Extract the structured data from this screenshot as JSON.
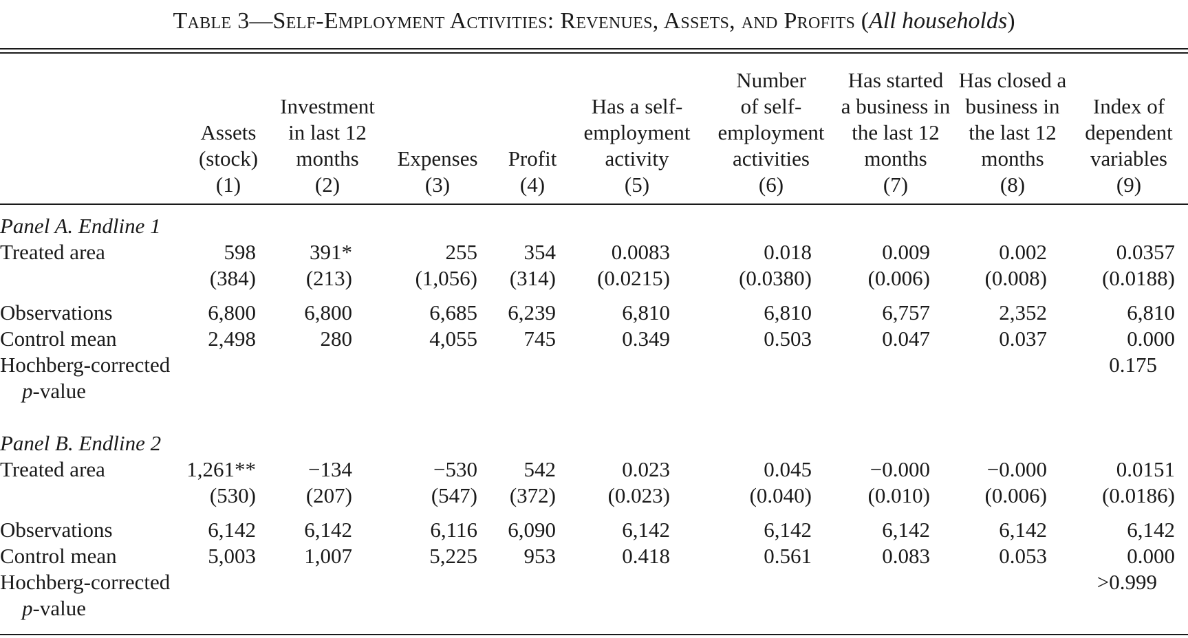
{
  "title": {
    "prefix": "Table 3",
    "dash": "—",
    "main": "Self-Employment Activities: Revenues, Assets, and Profits",
    "suffix": "All households"
  },
  "columns": [
    {
      "lines": [
        "Assets",
        "(stock)"
      ],
      "num": "(1)"
    },
    {
      "lines": [
        "Investment",
        "in last 12",
        "months"
      ],
      "num": "(2)"
    },
    {
      "lines": [
        "Expenses"
      ],
      "num": "(3)"
    },
    {
      "lines": [
        "Profit"
      ],
      "num": "(4)"
    },
    {
      "lines": [
        "Has a self-",
        "employment",
        "activity"
      ],
      "num": "(5)"
    },
    {
      "lines": [
        "Number",
        "of self-",
        "employment",
        "activities"
      ],
      "num": "(6)"
    },
    {
      "lines": [
        "Has started",
        "a business in",
        "the last 12",
        "months"
      ],
      "num": "(7)"
    },
    {
      "lines": [
        "Has closed a",
        "business in",
        "the last 12",
        "months"
      ],
      "num": "(8)"
    },
    {
      "lines": [
        "Index of",
        "dependent",
        "variables"
      ],
      "num": "(9)"
    }
  ],
  "panels": [
    {
      "label": "Panel A. Endline 1",
      "treated_label": "Treated area",
      "coef": [
        "598",
        "391*",
        "255",
        "354",
        "0.0083",
        "0.018",
        "0.009",
        "0.002",
        "0.0357"
      ],
      "se": [
        "(384)",
        "(213)",
        "(1,056)",
        "(314)",
        "(0.0215)",
        "(0.0380)",
        "(0.006)",
        "(0.008)",
        "(0.0188)"
      ],
      "obs_label": "Observations",
      "obs": [
        "6,800",
        "6,800",
        "6,685",
        "6,239",
        "6,810",
        "6,810",
        "6,757",
        "2,352",
        "6,810"
      ],
      "mean_label": "Control mean",
      "mean": [
        "2,498",
        "280",
        "4,055",
        "745",
        "0.349",
        "0.503",
        "0.047",
        "0.037",
        "0.000"
      ],
      "pval_label_1": "Hochberg-corrected",
      "pval_label_2_ital": "p",
      "pval_label_2_rest": "-value",
      "pval": "0.175"
    },
    {
      "label": "Panel B. Endline 2",
      "treated_label": "Treated area",
      "coef": [
        "1,261**",
        "−134",
        "−530",
        "542",
        "0.023",
        "0.045",
        "−0.000",
        "−0.000",
        "0.0151"
      ],
      "se": [
        "(530)",
        "(207)",
        "(547)",
        "(372)",
        "(0.023)",
        "(0.040)",
        "(0.010)",
        "(0.006)",
        "(0.0186)"
      ],
      "obs_label": "Observations",
      "obs": [
        "6,142",
        "6,142",
        "6,116",
        "6,090",
        "6,142",
        "6,142",
        "6,142",
        "6,142",
        "6,142"
      ],
      "mean_label": "Control mean",
      "mean": [
        "5,003",
        "1,007",
        "5,225",
        "953",
        "0.418",
        "0.561",
        "0.083",
        "0.053",
        "0.000"
      ],
      "pval_label_1": "Hochberg-corrected",
      "pval_label_2_ital": "p",
      "pval_label_2_rest": "-value",
      "pval": ">0.999"
    }
  ]
}
